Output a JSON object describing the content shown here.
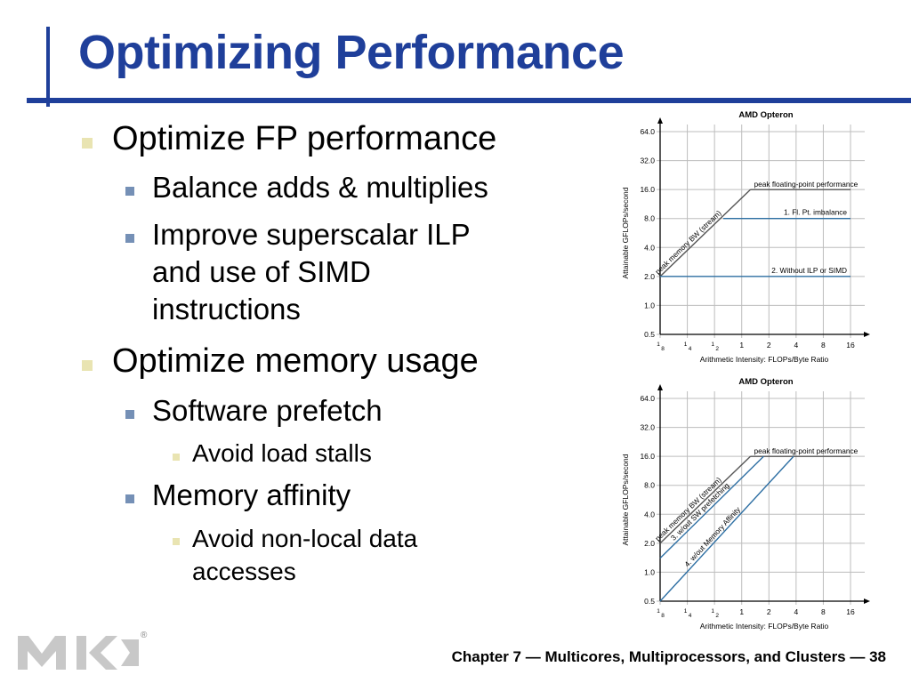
{
  "slide": {
    "title": "Optimizing Performance",
    "footer": "Chapter 7 — Multicores, Multiprocessors, and Clusters — 38",
    "logo_mark": "®"
  },
  "bullets": {
    "b1": "Optimize FP performance",
    "b1_1": "Balance adds & multiplies",
    "b1_2_line1": "Improve superscalar ILP",
    "b1_2_line2": "and use of SIMD",
    "b1_2_line3": "instructions",
    "b2": "Optimize memory usage",
    "b2_1": "Software prefetch",
    "b2_1_1": "Avoid load stalls",
    "b2_2": "Memory affinity",
    "b2_2_1_line1": "Avoid non-local data",
    "b2_2_1_line2": "accesses"
  },
  "colors": {
    "title": "#1f3f9a",
    "roof": "#555555",
    "ceiling": "#2e6fa3",
    "grid": "#bdbdbd"
  },
  "chart_data": [
    {
      "type": "line",
      "scale": "log2",
      "title": "AMD Opteron",
      "xlabel": "Arithmetic Intensity: FLOPs/Byte Ratio",
      "ylabel": "Attainable GFLOPs/second",
      "xticks": [
        0.125,
        0.25,
        0.5,
        1,
        2,
        4,
        8,
        16
      ],
      "xtick_labels": [
        [
          "1",
          "8"
        ],
        [
          "1",
          "4"
        ],
        [
          "1",
          "2"
        ],
        "1",
        "2",
        "4",
        "8",
        "16"
      ],
      "yticks": [
        0.5,
        1,
        2,
        4,
        8,
        16,
        32,
        64
      ],
      "ytick_labels": [
        "0.5",
        "1.0",
        "2.0",
        "4.0",
        "8.0",
        "16.0",
        "32.0",
        "64.0"
      ],
      "xlim": [
        0.125,
        16
      ],
      "ylim": [
        0.5,
        64
      ],
      "grid": true,
      "series": [
        {
          "label": "peak memory BW (stream)",
          "kind": "roof",
          "x": [
            0.125,
            1.25
          ],
          "y": [
            2,
            16
          ]
        },
        {
          "label": "peak floating-point performance",
          "kind": "roof",
          "x": [
            1.25,
            16
          ],
          "y": [
            16,
            16
          ]
        },
        {
          "label": "1. Fl. Pt. imbalance",
          "kind": "ceiling",
          "x": [
            0.625,
            16
          ],
          "y": [
            8,
            8
          ]
        },
        {
          "label": "2. Without ILP or SIMD",
          "kind": "ceiling",
          "x": [
            0.125,
            16
          ],
          "y": [
            2,
            2
          ]
        }
      ]
    },
    {
      "type": "line",
      "scale": "log2",
      "title": "AMD Opteron",
      "xlabel": "Arithmetic Intensity: FLOPs/Byte Ratio",
      "ylabel": "Attainable GFLOPs/second",
      "xticks": [
        0.125,
        0.25,
        0.5,
        1,
        2,
        4,
        8,
        16
      ],
      "xtick_labels": [
        [
          "1",
          "8"
        ],
        [
          "1",
          "4"
        ],
        [
          "1",
          "2"
        ],
        "1",
        "2",
        "4",
        "8",
        "16"
      ],
      "yticks": [
        0.5,
        1,
        2,
        4,
        8,
        16,
        32,
        64
      ],
      "ytick_labels": [
        "0.5",
        "1.0",
        "2.0",
        "4.0",
        "8.0",
        "16.0",
        "32.0",
        "64.0"
      ],
      "xlim": [
        0.125,
        16
      ],
      "ylim": [
        0.5,
        64
      ],
      "grid": true,
      "series": [
        {
          "label": "peak memory BW (stream)",
          "kind": "roof",
          "x": [
            0.125,
            1.25
          ],
          "y": [
            2,
            16
          ]
        },
        {
          "label": "peak floating-point performance",
          "kind": "roof",
          "x": [
            1.25,
            16
          ],
          "y": [
            16,
            16
          ]
        },
        {
          "label": "3. w/out SW prefetching",
          "kind": "ceiling",
          "x": [
            0.125,
            1.75
          ],
          "y": [
            1.4,
            16
          ]
        },
        {
          "label": "4. w/out Memory Affinity",
          "kind": "ceiling",
          "x": [
            0.125,
            3.75
          ],
          "y": [
            0.5,
            16
          ]
        }
      ]
    }
  ]
}
